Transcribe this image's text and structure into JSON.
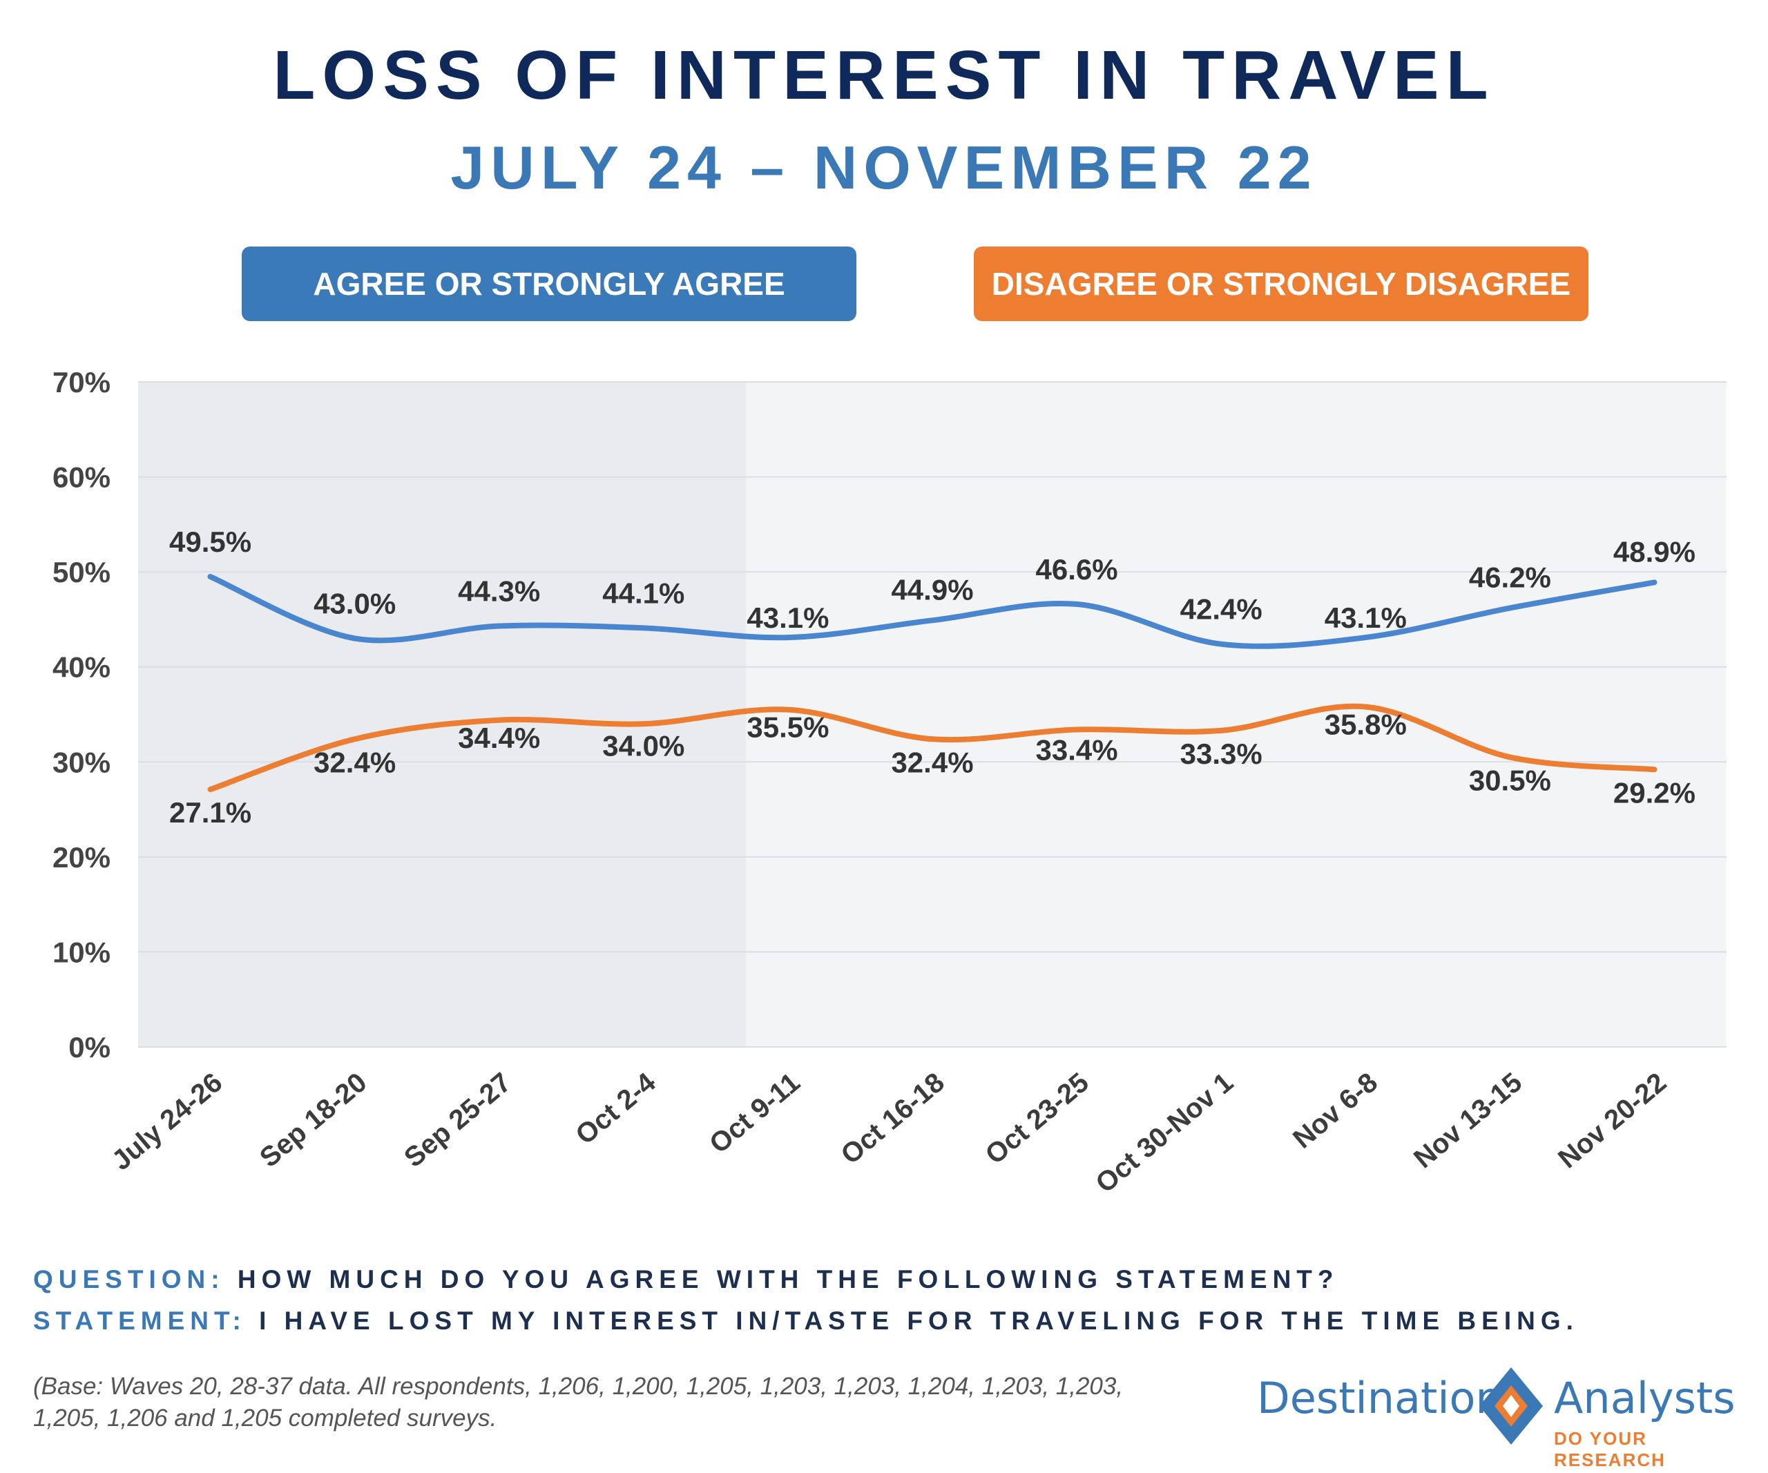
{
  "header": {
    "title": "LOSS OF INTEREST IN TRAVEL",
    "subtitle": "JULY 24 – NOVEMBER 22"
  },
  "chart_data": {
    "type": "line",
    "categories": [
      "July 24-26",
      "Sep 18-20",
      "Sep 25-27",
      "Oct 2-4",
      "Oct 9-11",
      "Oct 16-18",
      "Oct 23-25",
      "Oct 30-Nov 1",
      "Nov 6-8",
      "Nov 13-15",
      "Nov 20-22"
    ],
    "series": [
      {
        "name": "AGREE OR STRONGLY AGREE",
        "color": "#4a86cf",
        "values": [
          49.5,
          43.0,
          44.3,
          44.1,
          43.1,
          44.9,
          46.6,
          42.4,
          43.1,
          46.2,
          48.9
        ],
        "labels": [
          "49.5%",
          "43.0%",
          "44.3%",
          "44.1%",
          "43.1%",
          "44.9%",
          "46.6%",
          "42.4%",
          "43.1%",
          "46.2%",
          "48.9%"
        ]
      },
      {
        "name": "DISAGREE OR STRONGLY DISAGREE",
        "color": "#ed7d31",
        "values": [
          27.1,
          32.4,
          34.4,
          34.0,
          35.5,
          32.4,
          33.4,
          33.3,
          35.8,
          30.5,
          29.2
        ],
        "labels": [
          "27.1%",
          "32.4%",
          "34.4%",
          "34.0%",
          "35.5%",
          "32.4%",
          "33.4%",
          "33.3%",
          "35.8%",
          "30.5%",
          "29.2%"
        ]
      }
    ],
    "y_ticks": [
      "0%",
      "10%",
      "20%",
      "30%",
      "40%",
      "50%",
      "60%",
      "70%"
    ],
    "ylim": [
      0,
      70
    ],
    "grid": true,
    "legend_position": "top"
  },
  "footer": {
    "question_key": "QUESTION:",
    "question_text": "HOW MUCH DO YOU AGREE WITH THE FOLLOWING STATEMENT?",
    "statement_key": "STATEMENT:",
    "statement_text": "I HAVE LOST MY INTEREST IN/TASTE FOR TRAVELING FOR THE TIME BEING.",
    "base_note": "(Base: Waves 20, 28-37 data. All respondents, 1,206, 1,200, 1,205, 1,203, 1,203, 1,204, 1,203, 1,203, 1,205, 1,206 and 1,205 completed surveys."
  },
  "logo": {
    "left_word": "Destination",
    "right_word": "Analysts",
    "tagline": "DO YOUR RESEARCH",
    "icon": "diamond-logo-icon"
  }
}
